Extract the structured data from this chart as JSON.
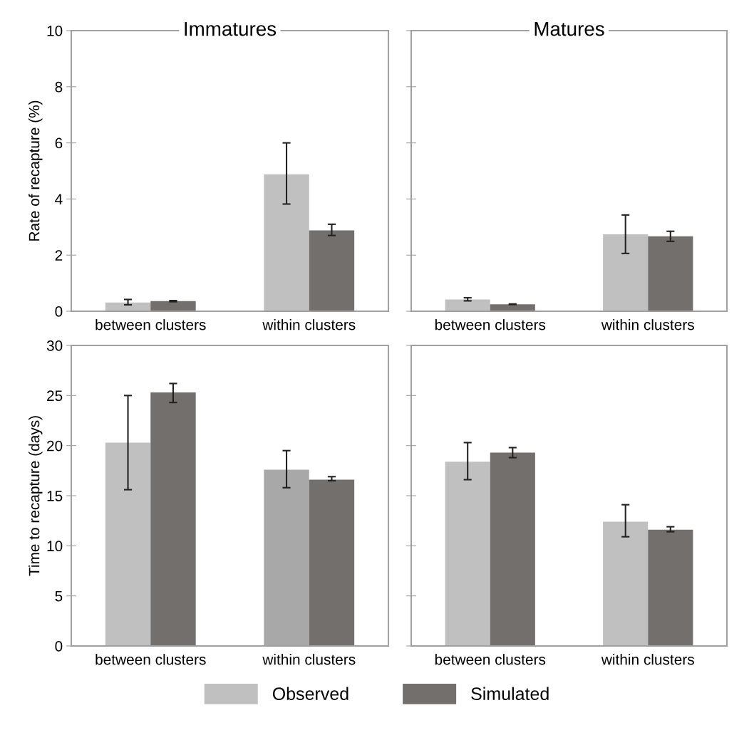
{
  "chart_data": [
    {
      "type": "bar",
      "title": "Immatures",
      "ylabel": "Rate of recapture (%)",
      "categories": [
        "between clusters",
        "within clusters"
      ],
      "ylim": [
        0,
        10
      ],
      "yticks": [
        0,
        2,
        4,
        6,
        8,
        10
      ],
      "legend": "bottom",
      "series": [
        {
          "name": "Observed",
          "color": "#c0c0c0",
          "values": [
            0.31,
            4.88
          ],
          "errors": [
            [
              0.23,
              0.42
            ],
            [
              3.82,
              6.0
            ]
          ]
        },
        {
          "name": "Simulated",
          "color": "#736f6d",
          "values": [
            0.36,
            2.88
          ],
          "errors": [
            [
              0.34,
              0.38
            ],
            [
              2.7,
              3.1
            ]
          ]
        }
      ]
    },
    {
      "type": "bar",
      "title": "Matures",
      "categories": [
        "between clusters",
        "within clusters"
      ],
      "ylim": [
        0,
        10
      ],
      "yticks": [
        0,
        2,
        4,
        6,
        8,
        10
      ],
      "tick_labels": "x",
      "series": [
        {
          "color": "#c0c0c0",
          "values": [
            0.42,
            2.74
          ],
          "errors": [
            [
              0.37,
              0.48
            ],
            [
              2.06,
              3.43
            ]
          ]
        },
        {
          "color": "#736f6d",
          "values": [
            0.25,
            2.67
          ],
          "errors": [
            [
              0.24,
              0.26
            ],
            [
              2.49,
              2.85
            ]
          ]
        }
      ]
    },
    {
      "type": "bar",
      "ylabel": "Time to recapture (days)",
      "categories": [
        "between clusters",
        "within clusters"
      ],
      "ylim": [
        0,
        30
      ],
      "yticks": [
        0,
        5,
        10,
        15,
        20,
        25,
        30
      ],
      "series": [
        {
          "colors": [
            "#c0c0c0",
            "#a8a8a8"
          ],
          "values": [
            20.3,
            17.6
          ],
          "errors": [
            [
              15.6,
              25.0
            ],
            [
              15.8,
              19.5
            ]
          ]
        },
        {
          "color": "#736f6d",
          "values": [
            25.3,
            16.6
          ],
          "errors": [
            [
              24.3,
              26.2
            ],
            [
              16.5,
              16.9
            ]
          ]
        }
      ]
    },
    {
      "type": "bar",
      "categories": [
        "between clusters",
        "within clusters"
      ],
      "ylim": [
        0,
        30
      ],
      "yticks": [
        0,
        5,
        10,
        15,
        20,
        25,
        30
      ],
      "tick_labels": "x",
      "series": [
        {
          "color": "#c0c0c0",
          "values": [
            18.4,
            12.4
          ],
          "errors": [
            [
              16.6,
              20.3
            ],
            [
              10.9,
              14.1
            ]
          ]
        },
        {
          "color": "#736f6d",
          "values": [
            19.3,
            11.6
          ],
          "errors": [
            [
              18.8,
              19.8
            ],
            [
              11.4,
              11.9
            ]
          ]
        }
      ]
    }
  ]
}
